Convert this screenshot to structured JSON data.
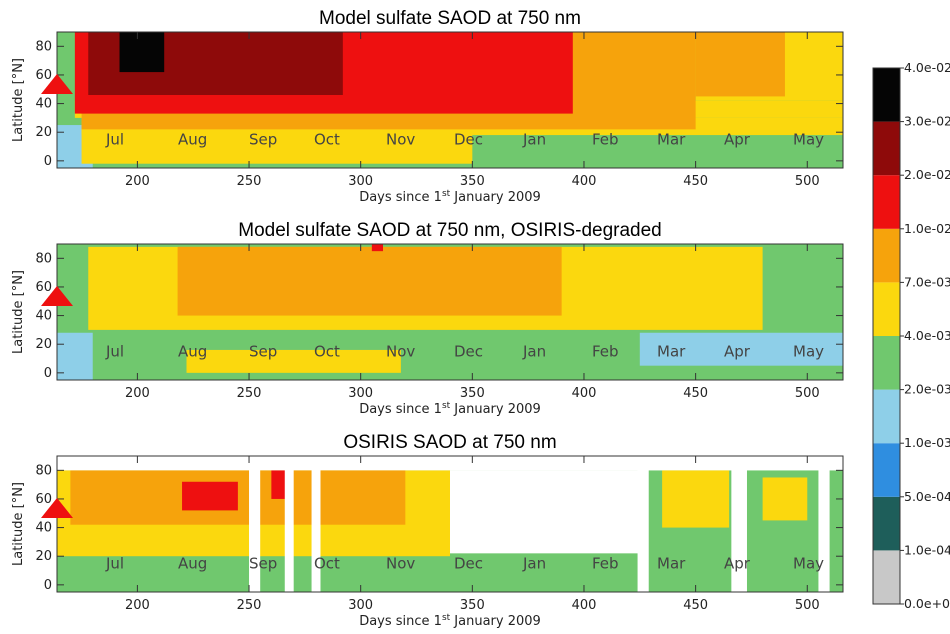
{
  "colors": {
    "levels": [
      "#c8c8c8",
      "#1e5e5a",
      "#2f8ee0",
      "#8ecfe8",
      "#70c86e",
      "#fbd80e",
      "#f6a30c",
      "#ee1010",
      "#8e0a0a",
      "#050505"
    ],
    "marker": "#ee1010",
    "month_label": "#444444"
  },
  "colorbar": {
    "labels": [
      "0.0e+00",
      "1.0e-04",
      "5.0e-04",
      "1.0e-03",
      "2.0e-03",
      "4.0e-03",
      "7.0e-03",
      "1.0e-02",
      "2.0e-02",
      "3.0e-02",
      "4.0e-02"
    ]
  },
  "chart_data": [
    {
      "type": "heatmap",
      "title": "Model sulfate SAOD at 750 nm",
      "xlabel": "Days since 1st January 2009",
      "xlabel_main": "Days since 1",
      "xlabel_sup": "st",
      "xlabel_rest": " January 2009",
      "ylabel": "Latitude [°N]",
      "xlim": [
        164,
        516
      ],
      "ylim": [
        -5,
        90
      ],
      "xticks": [
        200,
        250,
        300,
        350,
        400,
        450,
        500
      ],
      "yticks": [
        0,
        20,
        40,
        60,
        80
      ],
      "months": [
        "Jul",
        "Aug",
        "Sep",
        "Oct",
        "Nov",
        "Dec",
        "Jan",
        "Feb",
        "Mar",
        "Apr",
        "May"
      ],
      "marker": {
        "day": 164,
        "lat": 53
      },
      "bands": [
        {
          "level": 4,
          "x": [
            164,
            516
          ],
          "lat": [
            -5,
            90
          ]
        },
        {
          "level": 3,
          "x": [
            164,
            180
          ],
          "lat": [
            -5,
            25
          ]
        },
        {
          "level": 5,
          "x": [
            175,
            350
          ],
          "lat": [
            -2,
            30
          ]
        },
        {
          "level": 5,
          "x": [
            175,
            516
          ],
          "lat": [
            18,
            30
          ]
        },
        {
          "level": 5,
          "x": [
            172,
            516
          ],
          "lat": [
            30,
            42
          ]
        },
        {
          "level": 5,
          "x": [
            450,
            516
          ],
          "lat": [
            42,
            90
          ]
        },
        {
          "level": 6,
          "x": [
            175,
            450
          ],
          "lat": [
            22,
            90
          ]
        },
        {
          "level": 6,
          "x": [
            450,
            490
          ],
          "lat": [
            45,
            90
          ]
        },
        {
          "level": 7,
          "x": [
            172,
            395
          ],
          "lat": [
            33,
            90
          ]
        },
        {
          "level": 8,
          "x": [
            178,
            292
          ],
          "lat": [
            46,
            90
          ]
        },
        {
          "level": 9,
          "x": [
            192,
            212
          ],
          "lat": [
            62,
            90
          ]
        }
      ]
    },
    {
      "type": "heatmap",
      "title": "Model sulfate SAOD at 750 nm, OSIRIS-degraded",
      "xlabel": "Days since 1st January 2009",
      "xlabel_main": "Days since 1",
      "xlabel_sup": "st",
      "xlabel_rest": " January 2009",
      "ylabel": "Latitude [°N]",
      "xlim": [
        164,
        516
      ],
      "ylim": [
        -5,
        90
      ],
      "xticks": [
        200,
        250,
        300,
        350,
        400,
        450,
        500
      ],
      "yticks": [
        0,
        20,
        40,
        60,
        80
      ],
      "months": [
        "Jul",
        "Aug",
        "Sep",
        "Oct",
        "Nov",
        "Dec",
        "Jan",
        "Feb",
        "Mar",
        "Apr",
        "May"
      ],
      "marker": {
        "day": 164,
        "lat": 53
      },
      "bands": [
        {
          "level": 4,
          "x": [
            164,
            516
          ],
          "lat": [
            -5,
            90
          ]
        },
        {
          "level": 3,
          "x": [
            164,
            180
          ],
          "lat": [
            -5,
            28
          ]
        },
        {
          "level": 3,
          "x": [
            425,
            516
          ],
          "lat": [
            5,
            28
          ]
        },
        {
          "level": 5,
          "x": [
            178,
            480
          ],
          "lat": [
            30,
            88
          ]
        },
        {
          "level": 5,
          "x": [
            222,
            318
          ],
          "lat": [
            0,
            16
          ]
        },
        {
          "level": 6,
          "x": [
            218,
            390
          ],
          "lat": [
            40,
            88
          ]
        },
        {
          "level": 7,
          "x": [
            305,
            310
          ],
          "lat": [
            85,
            90
          ]
        }
      ]
    },
    {
      "type": "heatmap",
      "title": "OSIRIS SAOD at 750 nm",
      "xlabel": "Days since 1st January 2009",
      "xlabel_main": "Days since 1",
      "xlabel_sup": "st",
      "xlabel_rest": " January 2009",
      "ylabel": "Latitude [°N]",
      "xlim": [
        164,
        516
      ],
      "ylim": [
        -5,
        90
      ],
      "xticks": [
        200,
        250,
        300,
        350,
        400,
        450,
        500
      ],
      "yticks": [
        0,
        20,
        40,
        60,
        80
      ],
      "months": [
        "Jul",
        "Aug",
        "Sep",
        "Oct",
        "Nov",
        "Dec",
        "Jan",
        "Feb",
        "Mar",
        "Apr",
        "May"
      ],
      "marker": {
        "day": 164,
        "lat": 53
      },
      "bands": [
        {
          "level": 4,
          "x": [
            164,
            516
          ],
          "lat": [
            -5,
            80
          ]
        },
        {
          "level": 5,
          "x": [
            164,
            340
          ],
          "lat": [
            20,
            80
          ]
        },
        {
          "level": 5,
          "x": [
            435,
            465
          ],
          "lat": [
            40,
            80
          ]
        },
        {
          "level": 5,
          "x": [
            480,
            500
          ],
          "lat": [
            45,
            75
          ]
        },
        {
          "level": 6,
          "x": [
            170,
            320
          ],
          "lat": [
            42,
            80
          ]
        },
        {
          "level": 7,
          "x": [
            220,
            245
          ],
          "lat": [
            52,
            72
          ]
        },
        {
          "level": 7,
          "x": [
            260,
            268
          ],
          "lat": [
            60,
            80
          ]
        }
      ],
      "missing": [
        {
          "x": [
            250,
            255
          ],
          "lat": [
            -5,
            90
          ]
        },
        {
          "x": [
            266,
            270
          ],
          "lat": [
            -5,
            90
          ]
        },
        {
          "x": [
            278,
            282
          ],
          "lat": [
            -5,
            90
          ]
        },
        {
          "x": [
            424,
            429
          ],
          "lat": [
            -5,
            90
          ]
        },
        {
          "x": [
            466,
            473
          ],
          "lat": [
            -5,
            90
          ]
        },
        {
          "x": [
            505,
            510
          ],
          "lat": [
            -5,
            90
          ]
        },
        {
          "x": [
            164,
            516
          ],
          "lat": [
            80,
            90
          ]
        },
        {
          "x": [
            340,
            425
          ],
          "lat": [
            22,
            80
          ]
        }
      ]
    }
  ]
}
